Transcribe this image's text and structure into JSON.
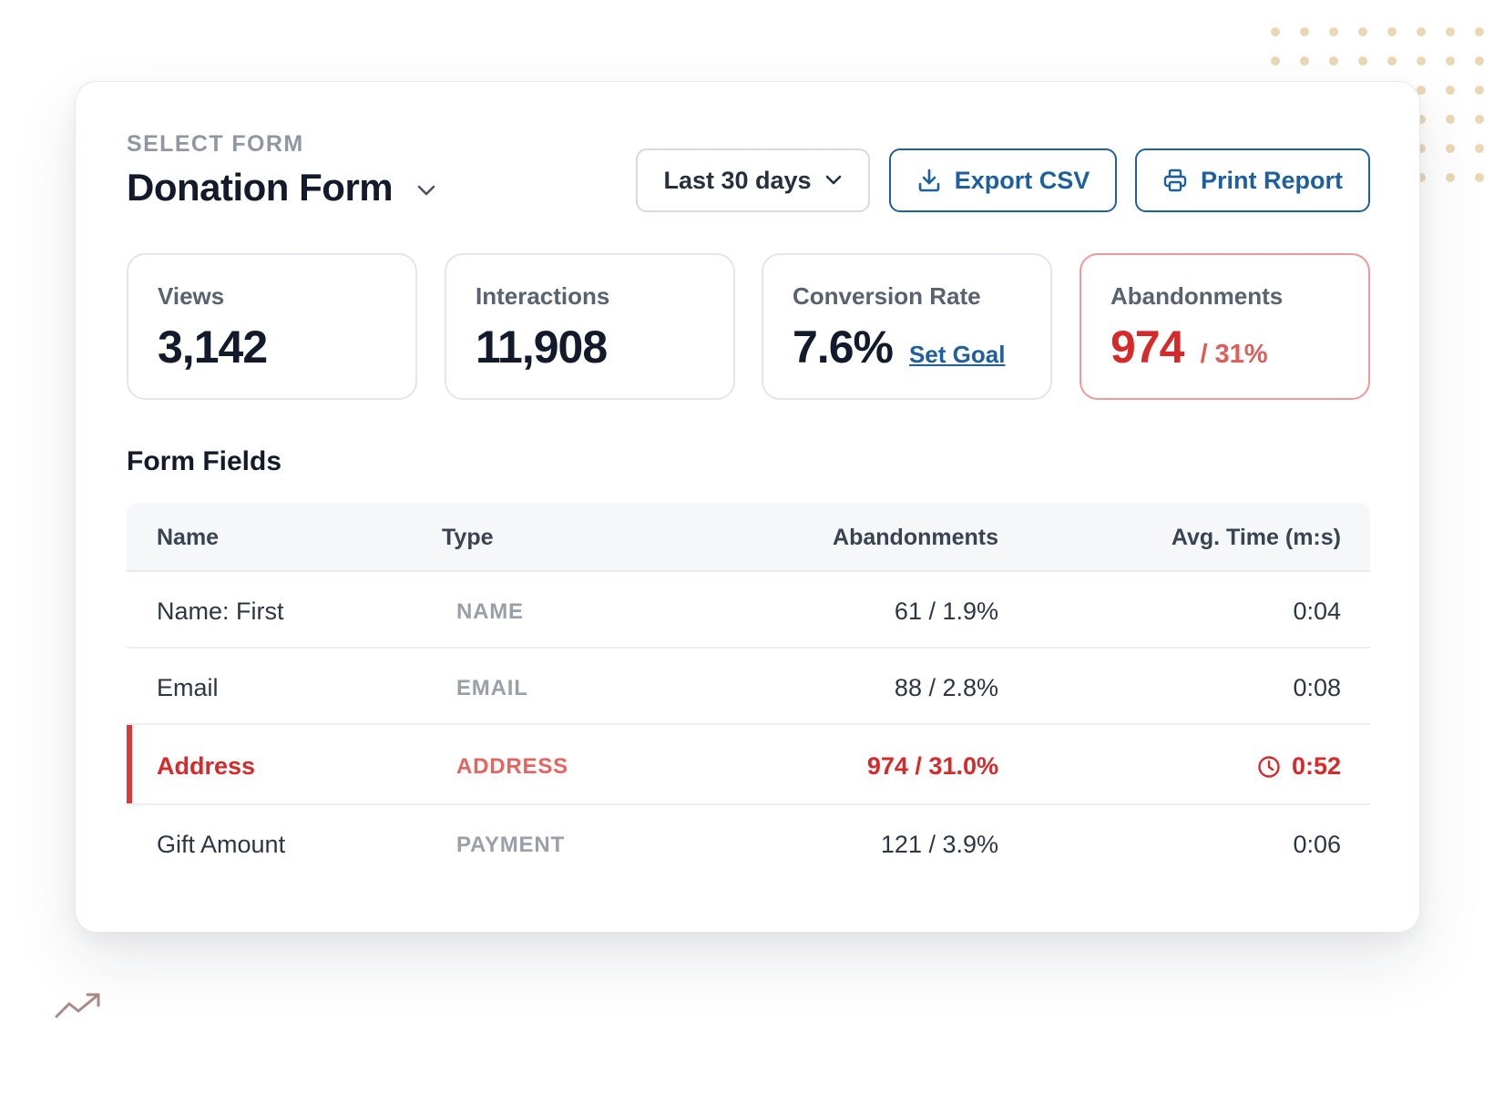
{
  "header": {
    "select_label": "SELECT FORM",
    "form_name": "Donation Form"
  },
  "toolbar": {
    "range_label": "Last 30 days",
    "export_label": "Export CSV",
    "print_label": "Print Report"
  },
  "stats": {
    "views": {
      "label": "Views",
      "value": "3,142"
    },
    "interactions": {
      "label": "Interactions",
      "value": "11,908"
    },
    "conversion": {
      "label": "Conversion Rate",
      "value": "7.6%",
      "link": "Set Goal"
    },
    "abandonments": {
      "label": "Abandonments",
      "value": "974",
      "sub": "/ 31%"
    }
  },
  "fields_section": {
    "title": "Form Fields",
    "columns": [
      "Name",
      "Type",
      "Abandonments",
      "Avg. Time (m:s)"
    ],
    "rows": [
      {
        "name": "Name: First",
        "type": "NAME",
        "abandonments": "61 / 1.9%",
        "avg_time": "0:04"
      },
      {
        "name": "Email",
        "type": "EMAIL",
        "abandonments": "88 / 2.8%",
        "avg_time": "0:08"
      },
      {
        "name": "Address",
        "type": "ADDRESS",
        "abandonments": "974 / 31.0%",
        "avg_time": "0:52"
      },
      {
        "name": "Gift Amount",
        "type": "PAYMENT",
        "abandonments": "121 / 3.9%",
        "avg_time": "0:06"
      }
    ]
  },
  "colors": {
    "brand_blue": "#1e5f9e",
    "alert_red": "#d62a2a",
    "decor_gold": "#ead8b4"
  }
}
